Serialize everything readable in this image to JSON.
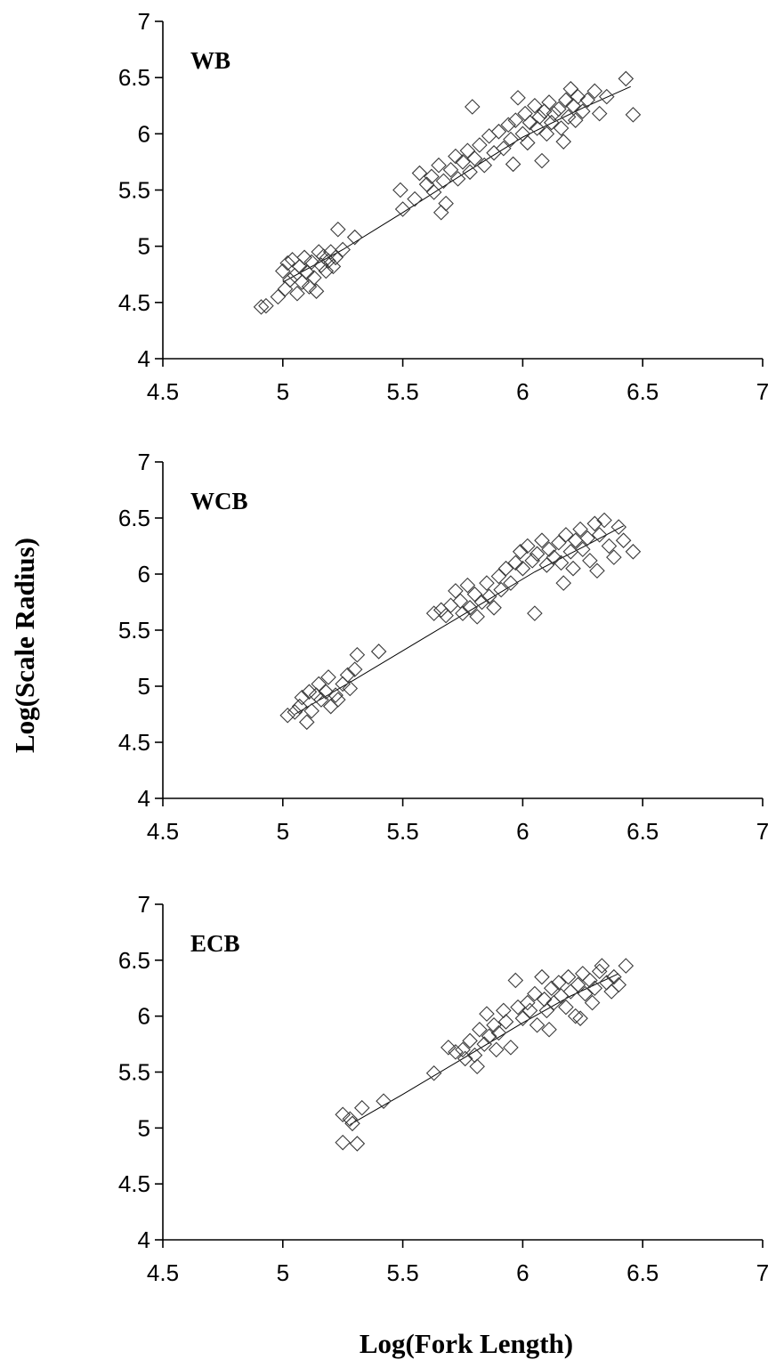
{
  "figure": {
    "xlabel": "Log(Fork Length)",
    "ylabel": "Log(Scale Radius)"
  },
  "chart_data": [
    {
      "type": "scatter",
      "panel_label": "WB",
      "xlim": [
        4.5,
        7
      ],
      "ylim": [
        4,
        7
      ],
      "x_ticks": [
        "4.5",
        "5",
        "5.5",
        "6",
        "6.5",
        "7"
      ],
      "y_ticks": [
        "4",
        "4.5",
        "5",
        "5.5",
        "6",
        "6.5",
        "7"
      ],
      "marker": "open-diamond",
      "trend_line": [
        [
          5.0,
          4.68
        ],
        [
          5.25,
          4.97
        ],
        [
          5.5,
          5.3
        ],
        [
          5.75,
          5.64
        ],
        [
          6.0,
          5.97
        ],
        [
          6.25,
          6.23
        ],
        [
          6.45,
          6.42
        ]
      ],
      "cluster_points": [
        [
          4.91,
          4.46
        ],
        [
          4.93,
          4.47
        ],
        [
          4.98,
          4.55
        ],
        [
          5.0,
          4.78
        ],
        [
          5.01,
          4.62
        ],
        [
          5.02,
          4.85
        ],
        [
          5.03,
          4.7
        ],
        [
          5.04,
          4.88
        ],
        [
          5.05,
          4.74
        ],
        [
          5.06,
          4.58
        ],
        [
          5.07,
          4.82
        ],
        [
          5.08,
          4.68
        ],
        [
          5.09,
          4.9
        ],
        [
          5.1,
          4.77
        ],
        [
          5.11,
          4.64
        ],
        [
          5.12,
          4.86
        ],
        [
          5.13,
          4.72
        ],
        [
          5.14,
          4.6
        ],
        [
          5.15,
          4.95
        ],
        [
          5.16,
          4.83
        ],
        [
          5.17,
          4.91
        ],
        [
          5.18,
          4.78
        ],
        [
          5.19,
          4.87
        ],
        [
          5.2,
          4.95
        ],
        [
          5.21,
          4.82
        ],
        [
          5.22,
          4.9
        ],
        [
          5.23,
          5.15
        ],
        [
          5.25,
          4.97
        ],
        [
          5.3,
          5.08
        ],
        [
          5.49,
          5.5
        ],
        [
          5.5,
          5.33
        ],
        [
          5.55,
          5.42
        ],
        [
          5.57,
          5.65
        ],
        [
          5.6,
          5.55
        ],
        [
          5.62,
          5.62
        ],
        [
          5.63,
          5.48
        ],
        [
          5.65,
          5.72
        ],
        [
          5.66,
          5.3
        ],
        [
          5.67,
          5.58
        ],
        [
          5.68,
          5.38
        ],
        [
          5.7,
          5.68
        ],
        [
          5.72,
          5.8
        ],
        [
          5.73,
          5.6
        ],
        [
          5.75,
          5.75
        ],
        [
          5.77,
          5.85
        ],
        [
          5.78,
          5.66
        ],
        [
          5.79,
          6.24
        ],
        [
          5.8,
          5.78
        ],
        [
          5.82,
          5.9
        ],
        [
          5.84,
          5.72
        ],
        [
          5.86,
          5.98
        ],
        [
          5.88,
          5.83
        ],
        [
          5.9,
          6.02
        ],
        [
          5.92,
          5.87
        ],
        [
          5.94,
          6.08
        ],
        [
          5.95,
          5.95
        ],
        [
          5.96,
          5.73
        ],
        [
          5.97,
          6.12
        ],
        [
          5.98,
          6.32
        ],
        [
          6.0,
          6.0
        ],
        [
          6.01,
          6.18
        ],
        [
          6.02,
          5.92
        ],
        [
          6.03,
          6.1
        ],
        [
          6.05,
          6.25
        ],
        [
          6.06,
          6.05
        ],
        [
          6.07,
          6.15
        ],
        [
          6.08,
          5.76
        ],
        [
          6.09,
          6.2
        ],
        [
          6.1,
          6.0
        ],
        [
          6.11,
          6.28
        ],
        [
          6.12,
          6.1
        ],
        [
          6.13,
          6.18
        ],
        [
          6.15,
          6.22
        ],
        [
          6.16,
          6.05
        ],
        [
          6.17,
          5.93
        ],
        [
          6.18,
          6.3
        ],
        [
          6.19,
          6.15
        ],
        [
          6.2,
          6.4
        ],
        [
          6.21,
          6.25
        ],
        [
          6.22,
          6.12
        ],
        [
          6.23,
          6.33
        ],
        [
          6.25,
          6.2
        ],
        [
          6.27,
          6.3
        ],
        [
          6.3,
          6.38
        ],
        [
          6.32,
          6.18
        ],
        [
          6.35,
          6.33
        ],
        [
          6.43,
          6.49
        ],
        [
          6.46,
          6.17
        ]
      ]
    },
    {
      "type": "scatter",
      "panel_label": "WCB",
      "xlim": [
        4.5,
        7
      ],
      "ylim": [
        4,
        7
      ],
      "x_ticks": [
        "4.5",
        "5",
        "5.5",
        "6",
        "6.5",
        "7"
      ],
      "y_ticks": [
        "4",
        "4.5",
        "5",
        "5.5",
        "6",
        "6.5",
        "7"
      ],
      "marker": "open-diamond",
      "trend_line": [
        [
          5.05,
          4.75
        ],
        [
          5.3,
          5.06
        ],
        [
          5.55,
          5.38
        ],
        [
          5.8,
          5.7
        ],
        [
          6.05,
          6.02
        ],
        [
          6.25,
          6.24
        ],
        [
          6.42,
          6.43
        ]
      ],
      "cluster_points": [
        [
          5.02,
          4.74
        ],
        [
          5.05,
          4.77
        ],
        [
          5.07,
          4.82
        ],
        [
          5.08,
          4.9
        ],
        [
          5.1,
          4.68
        ],
        [
          5.11,
          4.95
        ],
        [
          5.12,
          4.78
        ],
        [
          5.14,
          4.92
        ],
        [
          5.15,
          5.02
        ],
        [
          5.16,
          4.88
        ],
        [
          5.18,
          4.95
        ],
        [
          5.19,
          5.08
        ],
        [
          5.2,
          4.82
        ],
        [
          5.22,
          4.92
        ],
        [
          5.23,
          4.88
        ],
        [
          5.25,
          5.02
        ],
        [
          5.27,
          5.1
        ],
        [
          5.28,
          4.98
        ],
        [
          5.3,
          5.15
        ],
        [
          5.31,
          5.28
        ],
        [
          5.4,
          5.31
        ],
        [
          5.63,
          5.65
        ],
        [
          5.66,
          5.68
        ],
        [
          5.68,
          5.63
        ],
        [
          5.7,
          5.72
        ],
        [
          5.72,
          5.85
        ],
        [
          5.74,
          5.76
        ],
        [
          5.75,
          5.65
        ],
        [
          5.77,
          5.9
        ],
        [
          5.78,
          5.7
        ],
        [
          5.8,
          5.82
        ],
        [
          5.81,
          5.62
        ],
        [
          5.83,
          5.75
        ],
        [
          5.85,
          5.92
        ],
        [
          5.86,
          5.8
        ],
        [
          5.88,
          5.7
        ],
        [
          5.9,
          5.98
        ],
        [
          5.91,
          5.86
        ],
        [
          5.93,
          6.05
        ],
        [
          5.95,
          5.92
        ],
        [
          5.97,
          6.1
        ],
        [
          5.99,
          6.2
        ],
        [
          6.0,
          6.05
        ],
        [
          6.02,
          6.25
        ],
        [
          6.04,
          6.12
        ],
        [
          6.05,
          5.65
        ],
        [
          6.06,
          6.18
        ],
        [
          6.08,
          6.3
        ],
        [
          6.1,
          6.08
        ],
        [
          6.11,
          6.22
        ],
        [
          6.13,
          6.15
        ],
        [
          6.15,
          6.28
        ],
        [
          6.16,
          6.1
        ],
        [
          6.17,
          5.92
        ],
        [
          6.18,
          6.35
        ],
        [
          6.2,
          6.2
        ],
        [
          6.21,
          6.05
        ],
        [
          6.22,
          6.3
        ],
        [
          6.24,
          6.4
        ],
        [
          6.25,
          6.22
        ],
        [
          6.27,
          6.32
        ],
        [
          6.28,
          6.12
        ],
        [
          6.3,
          6.45
        ],
        [
          6.31,
          6.03
        ],
        [
          6.32,
          6.35
        ],
        [
          6.34,
          6.48
        ],
        [
          6.36,
          6.25
        ],
        [
          6.38,
          6.15
        ],
        [
          6.4,
          6.42
        ],
        [
          6.42,
          6.3
        ],
        [
          6.46,
          6.2
        ]
      ]
    },
    {
      "type": "scatter",
      "panel_label": "ECB",
      "xlim": [
        4.5,
        7
      ],
      "ylim": [
        4,
        7
      ],
      "x_ticks": [
        "4.5",
        "5",
        "5.5",
        "6",
        "6.5",
        "7"
      ],
      "y_ticks": [
        "4",
        "4.5",
        "5",
        "5.5",
        "6",
        "6.5",
        "7"
      ],
      "marker": "open-diamond",
      "trend_line": [
        [
          5.28,
          5.03
        ],
        [
          5.5,
          5.3
        ],
        [
          5.75,
          5.62
        ],
        [
          6.0,
          5.94
        ],
        [
          6.2,
          6.18
        ],
        [
          6.4,
          6.38
        ]
      ],
      "cluster_points": [
        [
          5.25,
          5.12
        ],
        [
          5.25,
          4.87
        ],
        [
          5.28,
          5.08
        ],
        [
          5.29,
          5.04
        ],
        [
          5.31,
          4.86
        ],
        [
          5.33,
          5.18
        ],
        [
          5.42,
          5.24
        ],
        [
          5.63,
          5.49
        ],
        [
          5.69,
          5.72
        ],
        [
          5.72,
          5.68
        ],
        [
          5.75,
          5.7
        ],
        [
          5.76,
          5.62
        ],
        [
          5.78,
          5.78
        ],
        [
          5.8,
          5.65
        ],
        [
          5.81,
          5.55
        ],
        [
          5.82,
          5.88
        ],
        [
          5.84,
          5.75
        ],
        [
          5.85,
          6.02
        ],
        [
          5.86,
          5.82
        ],
        [
          5.88,
          5.92
        ],
        [
          5.89,
          5.7
        ],
        [
          5.9,
          5.85
        ],
        [
          5.92,
          6.05
        ],
        [
          5.93,
          5.95
        ],
        [
          5.95,
          5.72
        ],
        [
          5.97,
          6.32
        ],
        [
          5.98,
          6.08
        ],
        [
          6.0,
          5.98
        ],
        [
          6.02,
          6.12
        ],
        [
          6.03,
          6.05
        ],
        [
          6.05,
          6.2
        ],
        [
          6.06,
          5.92
        ],
        [
          6.08,
          6.35
        ],
        [
          6.09,
          6.15
        ],
        [
          6.1,
          6.05
        ],
        [
          6.11,
          5.88
        ],
        [
          6.12,
          6.25
        ],
        [
          6.13,
          6.12
        ],
        [
          6.15,
          6.3
        ],
        [
          6.16,
          6.18
        ],
        [
          6.18,
          6.08
        ],
        [
          6.19,
          6.35
        ],
        [
          6.2,
          6.22
        ],
        [
          6.22,
          6.0
        ],
        [
          6.23,
          6.28
        ],
        [
          6.24,
          5.98
        ],
        [
          6.25,
          6.38
        ],
        [
          6.26,
          6.2
        ],
        [
          6.28,
          6.32
        ],
        [
          6.29,
          6.12
        ],
        [
          6.3,
          6.25
        ],
        [
          6.32,
          6.4
        ],
        [
          6.33,
          6.45
        ],
        [
          6.35,
          6.3
        ],
        [
          6.37,
          6.22
        ],
        [
          6.38,
          6.35
        ],
        [
          6.4,
          6.28
        ],
        [
          6.43,
          6.45
        ]
      ]
    }
  ]
}
